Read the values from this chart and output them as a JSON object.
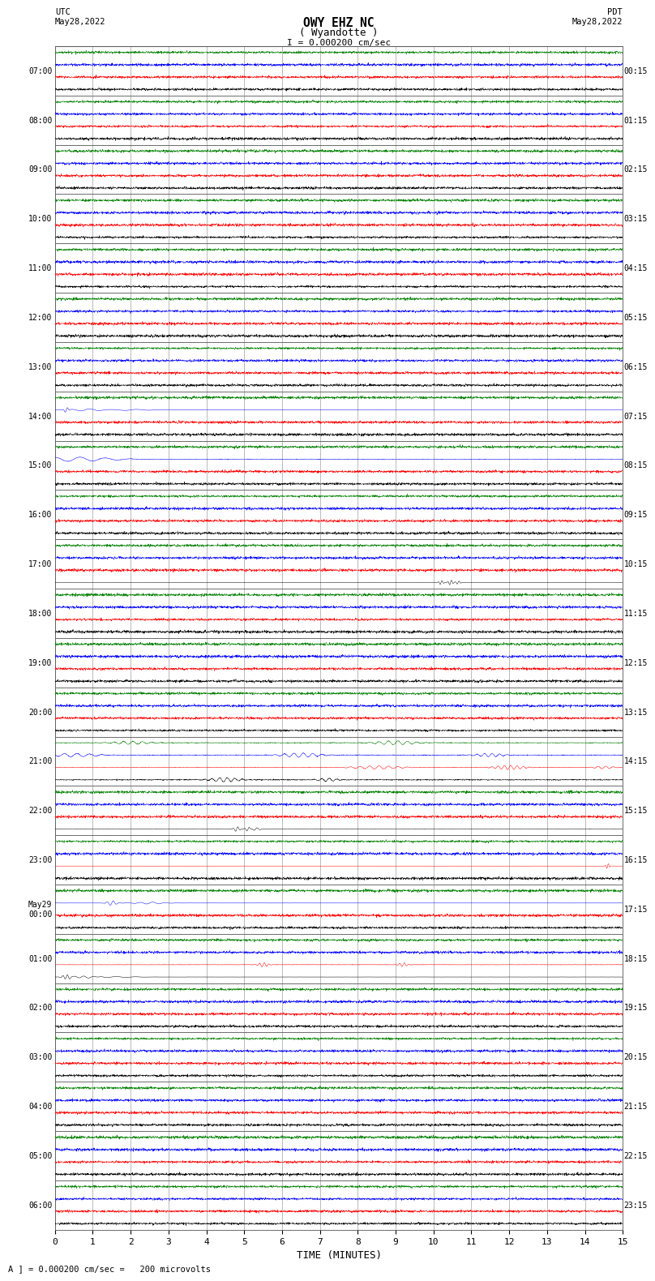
{
  "title_line1": "OWY EHZ NC",
  "title_line2": "( Wyandotte )",
  "scale_label": "I = 0.000200 cm/sec",
  "left_header": "UTC\nMay28,2022",
  "right_header": "PDT\nMay28,2022",
  "bottom_label": "TIME (MINUTES)",
  "footer_label": "A ] = 0.000200 cm/sec =   200 microvolts",
  "background_color": "#ffffff",
  "trace_colors": [
    "black",
    "red",
    "blue",
    "green"
  ],
  "num_hours": 24,
  "x_max": 15,
  "left_labels": [
    "07:00",
    "08:00",
    "09:00",
    "10:00",
    "11:00",
    "12:00",
    "13:00",
    "14:00",
    "15:00",
    "16:00",
    "17:00",
    "18:00",
    "19:00",
    "20:00",
    "21:00",
    "22:00",
    "23:00",
    "May29\n00:00",
    "01:00",
    "02:00",
    "03:00",
    "04:00",
    "05:00",
    "06:00"
  ],
  "right_labels": [
    "00:15",
    "01:15",
    "02:15",
    "03:15",
    "04:15",
    "05:15",
    "06:15",
    "07:15",
    "08:15",
    "09:15",
    "10:15",
    "11:15",
    "12:15",
    "13:15",
    "14:15",
    "15:15",
    "16:15",
    "17:15",
    "18:15",
    "19:15",
    "20:15",
    "21:15",
    "22:15",
    "23:15"
  ],
  "seed": 42
}
